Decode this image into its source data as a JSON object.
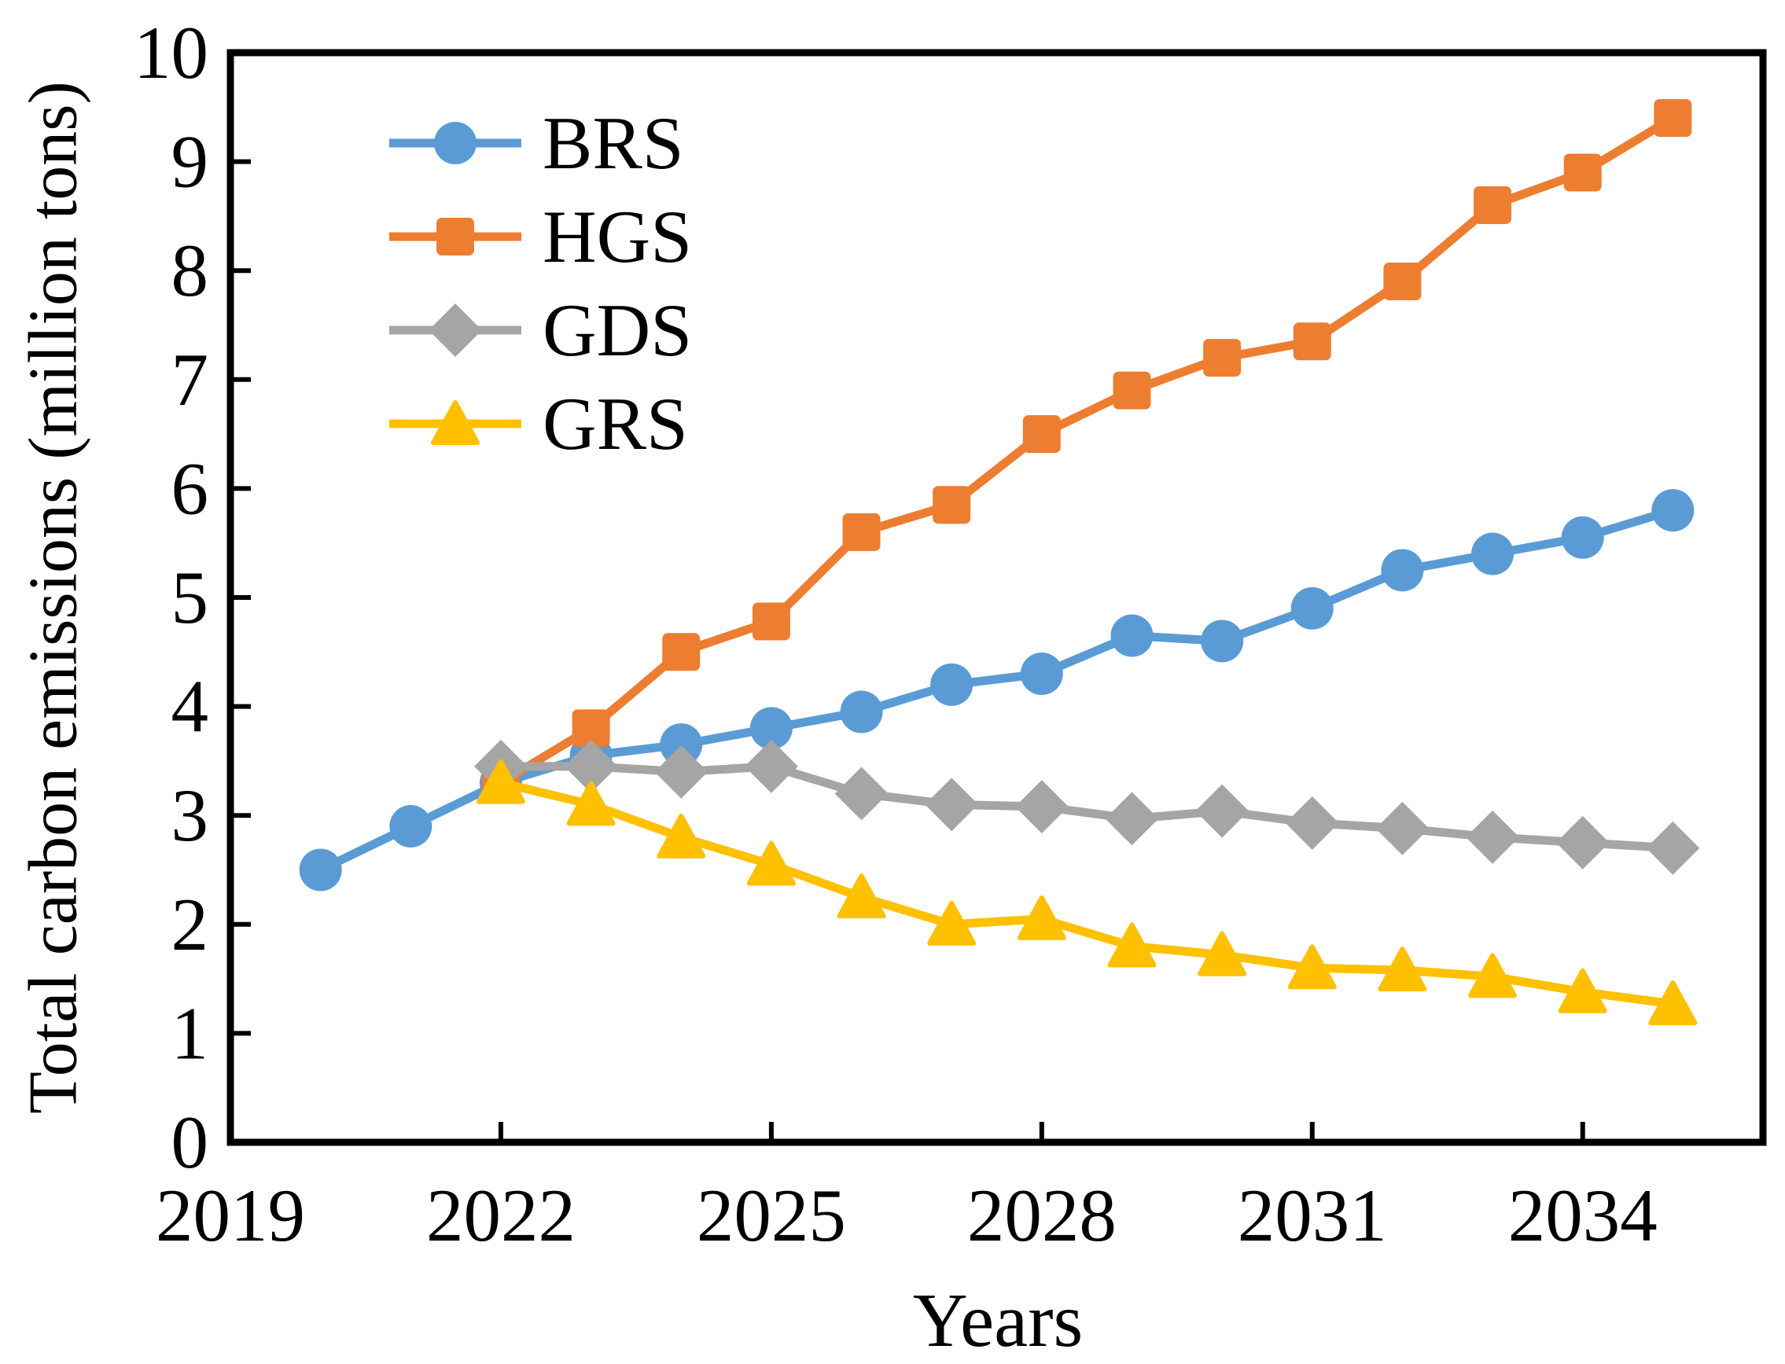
{
  "chart_data": {
    "type": "line",
    "title": "",
    "xlabel": "Years",
    "ylabel": "Total carbon emissions (million tons)",
    "xlim": [
      2019,
      2036
    ],
    "ylim": [
      0,
      10
    ],
    "x_ticks": [
      2019,
      2022,
      2025,
      2028,
      2031,
      2034
    ],
    "y_ticks": [
      0,
      1,
      2,
      3,
      4,
      5,
      6,
      7,
      8,
      9,
      10
    ],
    "grid": false,
    "legend_position": "upper-left-inside",
    "frame_color": "#000000",
    "background_color": "#ffffff",
    "series": [
      {
        "name": "BRS",
        "color": "#5B9BD5",
        "marker": "circle",
        "x": [
          2020,
          2021,
          2022,
          2023,
          2024,
          2025,
          2026,
          2027,
          2028,
          2029,
          2030,
          2031,
          2032,
          2033,
          2034,
          2035
        ],
        "values": [
          2.5,
          2.9,
          3.3,
          3.55,
          3.65,
          3.8,
          3.95,
          4.2,
          4.3,
          4.65,
          4.6,
          4.9,
          5.25,
          5.4,
          5.55,
          5.8
        ]
      },
      {
        "name": "HGS",
        "color": "#ED7D31",
        "marker": "square",
        "x": [
          2022,
          2023,
          2024,
          2025,
          2026,
          2027,
          2028,
          2029,
          2030,
          2031,
          2032,
          2033,
          2034,
          2035
        ],
        "values": [
          3.3,
          3.8,
          4.5,
          4.78,
          5.6,
          5.85,
          6.5,
          6.9,
          7.2,
          7.35,
          7.9,
          8.6,
          8.9,
          9.4
        ]
      },
      {
        "name": "GDS",
        "color": "#A5A5A5",
        "marker": "diamond",
        "x": [
          2022,
          2023,
          2024,
          2025,
          2026,
          2027,
          2028,
          2029,
          2030,
          2031,
          2032,
          2033,
          2034,
          2035
        ],
        "values": [
          3.45,
          3.45,
          3.4,
          3.45,
          3.2,
          3.1,
          3.08,
          2.97,
          3.04,
          2.93,
          2.88,
          2.8,
          2.75,
          2.7
        ]
      },
      {
        "name": "GRS",
        "color": "#FFC000",
        "marker": "triangle",
        "x": [
          2022,
          2023,
          2024,
          2025,
          2026,
          2027,
          2028,
          2029,
          2030,
          2031,
          2032,
          2033,
          2034,
          2035
        ],
        "values": [
          3.3,
          3.1,
          2.8,
          2.55,
          2.25,
          2.0,
          2.05,
          1.8,
          1.72,
          1.6,
          1.58,
          1.52,
          1.38,
          1.27
        ]
      }
    ]
  }
}
